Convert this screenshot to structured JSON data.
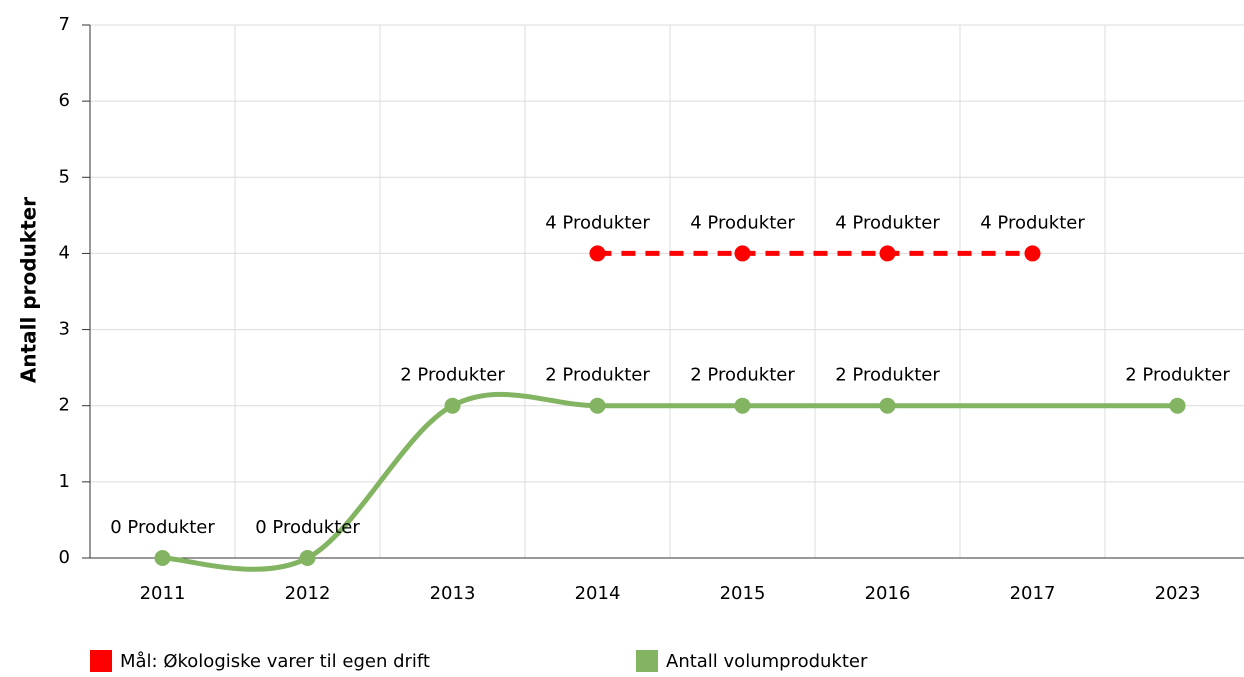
{
  "chart_data": {
    "type": "line",
    "y_label": "Antall produkter",
    "categories": [
      "2011",
      "2012",
      "2013",
      "2014",
      "2015",
      "2016",
      "2017",
      "2023"
    ],
    "series": [
      {
        "name": "Mål: Økologiske varer til egen drift",
        "color": "#ff0000",
        "dashed": true,
        "values": [
          null,
          null,
          null,
          4,
          4,
          4,
          4,
          null
        ],
        "value_labels": [
          null,
          null,
          null,
          "4 Produkter",
          "4 Produkter",
          "4 Produkter",
          "4 Produkter",
          null
        ]
      },
      {
        "name": "Antall volumprodukter",
        "color": "#82b462",
        "dashed": false,
        "values": [
          0,
          0,
          2,
          2,
          2,
          2,
          null,
          2
        ],
        "value_labels": [
          "0 Produkter",
          "0 Produkter",
          "2 Produkter",
          "2 Produkter",
          "2 Produkter",
          "2 Produkter",
          null,
          "2 Produkter"
        ]
      }
    ],
    "connect_nulls": true,
    "smooth": true,
    "ylim": [
      0,
      7
    ],
    "yticks": [
      0,
      1,
      2,
      3,
      4,
      5,
      6,
      7
    ],
    "grid": true
  }
}
